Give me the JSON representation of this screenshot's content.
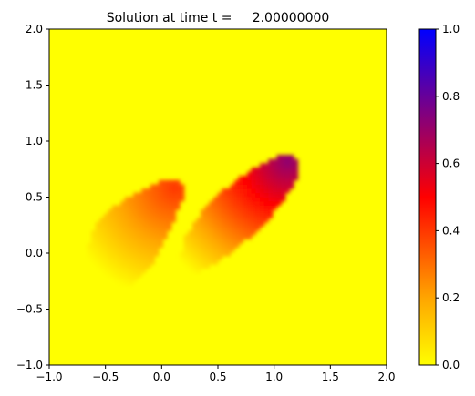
{
  "chart_data": {
    "type": "heatmap",
    "title": "Solution at time t =     2.00000000",
    "xlabel": "",
    "ylabel": "",
    "xlim": [
      -1.0,
      2.0
    ],
    "ylim": [
      -1.0,
      2.0
    ],
    "x_ticks": [
      -1.0,
      -0.5,
      0.0,
      0.5,
      1.0,
      1.5,
      2.0
    ],
    "y_ticks": [
      -1.0,
      -0.5,
      0.0,
      0.5,
      1.0,
      1.5,
      2.0
    ],
    "x_tick_labels": [
      "−1.0",
      "−0.5",
      "0.0",
      "0.5",
      "1.0",
      "1.5",
      "2.0"
    ],
    "y_tick_labels": [
      "−1.0",
      "−0.5",
      "0.0",
      "0.5",
      "1.0",
      "1.5",
      "2.0"
    ],
    "grid": false,
    "background_value": 0.0,
    "colormap": {
      "stops": [
        {
          "value": 0.0,
          "color": "#ffff00"
        },
        {
          "value": 0.2,
          "color": "#ffa500"
        },
        {
          "value": 0.5,
          "color": "#ff0000"
        },
        {
          "value": 0.75,
          "color": "#800080"
        },
        {
          "value": 1.0,
          "color": "#0000ff"
        }
      ]
    },
    "colorbar": {
      "range": [
        0.0,
        1.0
      ],
      "ticks": [
        0.0,
        0.2,
        0.4,
        0.6,
        0.8,
        1.0
      ],
      "tick_labels": [
        "0.0",
        "0.2",
        "0.4",
        "0.6",
        "0.8",
        "1.0"
      ]
    },
    "regions": [
      {
        "name": "left lobe",
        "outline": [
          [
            -0.68,
            -0.02
          ],
          [
            -0.6,
            0.22
          ],
          [
            -0.45,
            0.4
          ],
          [
            -0.25,
            0.52
          ],
          [
            -0.05,
            0.62
          ],
          [
            0.1,
            0.66
          ],
          [
            0.18,
            0.62
          ],
          [
            0.2,
            0.5
          ],
          [
            0.12,
            0.32
          ],
          [
            0.02,
            0.1
          ],
          [
            -0.1,
            -0.12
          ],
          [
            -0.28,
            -0.28
          ],
          [
            -0.48,
            -0.26
          ],
          [
            -0.62,
            -0.16
          ]
        ],
        "value_min": 0.0,
        "value_max": 0.4,
        "peak": [
          0.12,
          0.58
        ]
      },
      {
        "name": "right lobe",
        "outline": [
          [
            0.15,
            -0.15
          ],
          [
            0.2,
            0.12
          ],
          [
            0.35,
            0.36
          ],
          [
            0.55,
            0.56
          ],
          [
            0.8,
            0.74
          ],
          [
            1.0,
            0.85
          ],
          [
            1.15,
            0.9
          ],
          [
            1.22,
            0.82
          ],
          [
            1.2,
            0.65
          ],
          [
            1.05,
            0.42
          ],
          [
            0.85,
            0.2
          ],
          [
            0.62,
            0.0
          ],
          [
            0.4,
            -0.14
          ],
          [
            0.22,
            -0.22
          ]
        ],
        "value_min": 0.0,
        "value_max": 0.72,
        "peak": [
          1.12,
          0.82
        ]
      }
    ]
  }
}
